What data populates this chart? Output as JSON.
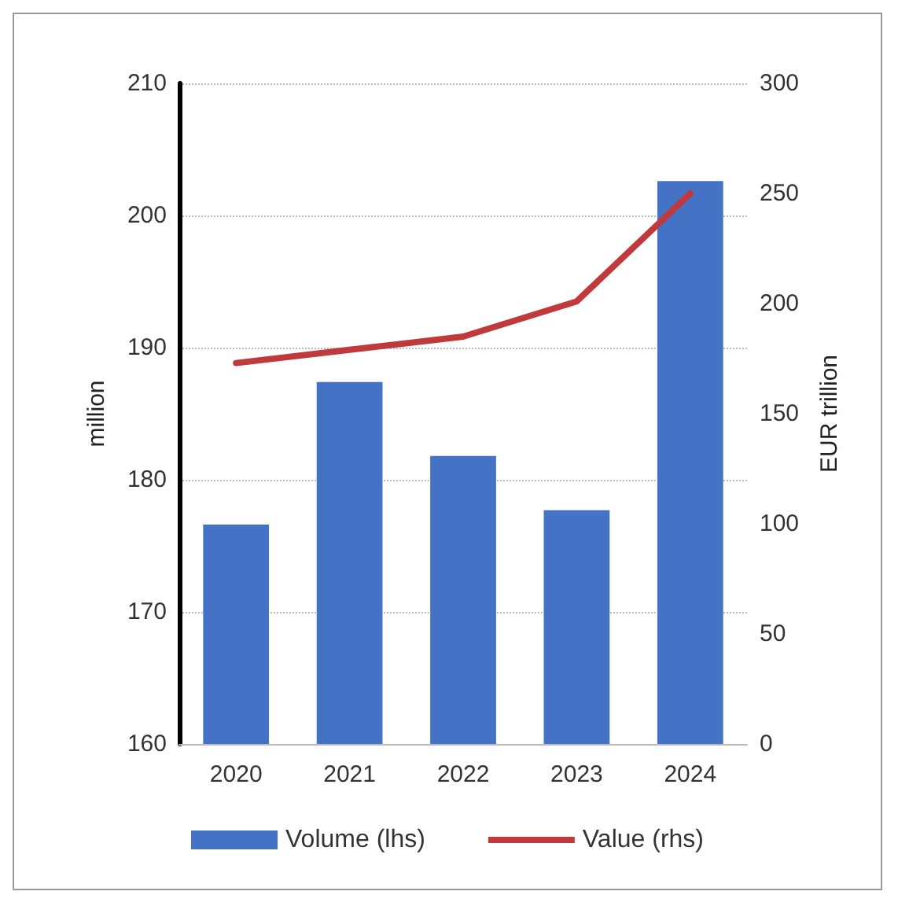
{
  "chart_data": {
    "type": "bar",
    "ylabel": "million",
    "y2label": "EUR trillion",
    "categories": [
      "2020",
      "2021",
      "2022",
      "2023",
      "2024"
    ],
    "series": [
      {
        "name": "Volume (lhs)",
        "color": "#4472c4",
        "values": [
          176.6,
          187.4,
          181.8,
          177.7,
          202.6
        ]
      },
      {
        "name": "Value (rhs)",
        "type": "line",
        "axis": "y2",
        "color": "#c0393b",
        "values": [
          173,
          179,
          185,
          201,
          250
        ]
      }
    ],
    "ylim": [
      160,
      210
    ],
    "yticks": [
      160,
      170,
      180,
      190,
      200,
      210
    ],
    "y2lim": [
      0,
      300
    ],
    "y2ticks": [
      0,
      50,
      100,
      150,
      200,
      250,
      300
    ],
    "grid": "y",
    "legend": "bottom",
    "marker": "none",
    "line_style": "solid"
  }
}
